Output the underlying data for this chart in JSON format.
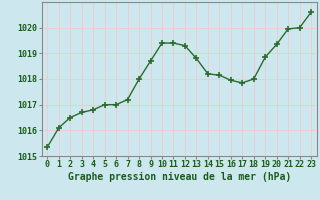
{
  "x": [
    0,
    1,
    2,
    3,
    4,
    5,
    6,
    7,
    8,
    9,
    10,
    11,
    12,
    13,
    14,
    15,
    16,
    17,
    18,
    19,
    20,
    21,
    22,
    23
  ],
  "y": [
    1015.35,
    1016.1,
    1016.5,
    1016.7,
    1016.8,
    1017.0,
    1017.0,
    1017.2,
    1018.0,
    1018.7,
    1019.4,
    1019.4,
    1019.3,
    1018.8,
    1018.2,
    1018.15,
    1017.95,
    1017.85,
    1018.0,
    1018.85,
    1019.35,
    1019.95,
    1020.0,
    1020.6
  ],
  "ylim": [
    1015,
    1021
  ],
  "yticks": [
    1015,
    1016,
    1017,
    1018,
    1019,
    1020
  ],
  "xlim": [
    -0.5,
    23.5
  ],
  "xticks": [
    0,
    1,
    2,
    3,
    4,
    5,
    6,
    7,
    8,
    9,
    10,
    11,
    12,
    13,
    14,
    15,
    16,
    17,
    18,
    19,
    20,
    21,
    22,
    23
  ],
  "xlabel": "Graphe pression niveau de la mer (hPa)",
  "line_color": "#2d6a2d",
  "marker": "+",
  "marker_size": 4,
  "bg_color": "#cce8ee",
  "grid_color_major": "#f0c8c8",
  "grid_color_minor": "#e0f4f8",
  "axis_label_color": "#1a5c1a",
  "tick_label_color": "#1a5c1a",
  "xlabel_fontsize": 7.0,
  "tick_fontsize": 6.0,
  "line_width": 1.0
}
